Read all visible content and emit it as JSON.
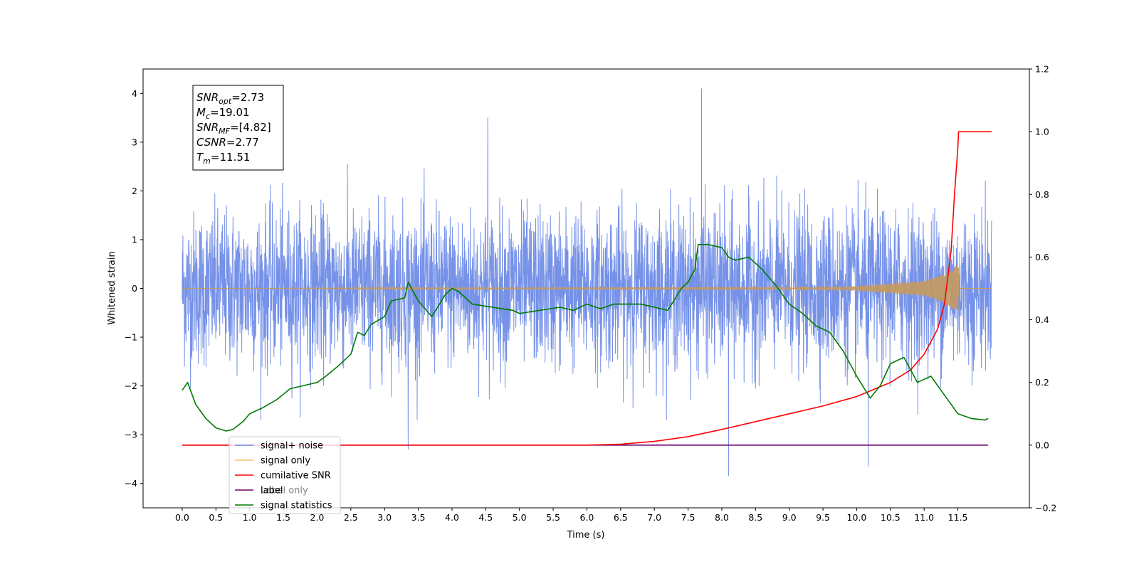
{
  "chart_data": {
    "type": "line",
    "xlabel": "Time (s)",
    "ylabel": "Whitened strain",
    "xlim": [
      -0.58,
      12.56
    ],
    "ylim": [
      -4.5,
      4.5
    ],
    "y2lim": [
      -0.2,
      1.2
    ],
    "x_ticks": [
      0.0,
      0.5,
      1.0,
      1.5,
      2.0,
      2.5,
      3.0,
      3.5,
      4.0,
      4.5,
      5.0,
      5.5,
      6.0,
      6.5,
      7.0,
      7.5,
      8.0,
      8.5,
      9.0,
      9.5,
      10.0,
      10.5,
      11.0,
      11.5
    ],
    "x_tick_labels": [
      "0.0",
      "0.5",
      "1.0",
      "1.5",
      "2.0",
      "2.5",
      "3.0",
      "3.5",
      "4.0",
      "4.5",
      "5.0",
      "5.5",
      "6.0",
      "6.5",
      "7.0",
      "7.5",
      "8.0",
      "8.5",
      "9.0",
      "9.5",
      "10.0",
      "10.5",
      "11.0",
      "11.5"
    ],
    "y_ticks": [
      -4,
      -3,
      -2,
      -1,
      0,
      1,
      2,
      3,
      4
    ],
    "y_tick_labels": [
      "−4",
      "−3",
      "−2",
      "−1",
      "0",
      "1",
      "2",
      "3",
      "4"
    ],
    "y2_ticks": [
      -0.2,
      0.0,
      0.2,
      0.4,
      0.6,
      0.8,
      1.0,
      1.2
    ],
    "y2_tick_labels": [
      "−0.2",
      "0.0",
      "0.2",
      "0.4",
      "0.6",
      "0.8",
      "1.0",
      "1.2"
    ],
    "grid": false,
    "legend_position": "bottom-left",
    "series": [
      {
        "name": "signal+ noise",
        "axis": "left",
        "color": "#6a89e6",
        "x_range": [
          0.0,
          12.0
        ],
        "envelope_typical": [
          -1.7,
          1.7
        ],
        "spikes": [
          [
            4.53,
            3.5
          ],
          [
            7.7,
            4.1
          ],
          [
            8.1,
            -3.85
          ],
          [
            10.17,
            -3.65
          ],
          [
            3.35,
            -3.3
          ]
        ]
      },
      {
        "name": "signal only",
        "axis": "left",
        "color": "#f5c069",
        "x_range": [
          0.0,
          11.51
        ],
        "envelope_peak": [
          [
            0.0,
            0.0
          ],
          [
            9.0,
            0.03
          ],
          [
            10.0,
            0.05
          ],
          [
            11.0,
            0.15
          ],
          [
            11.3,
            0.3
          ],
          [
            11.51,
            0.5
          ]
        ]
      },
      {
        "name": "cumilative SNR",
        "axis": "right",
        "color": "#ff0000",
        "x": [
          0.0,
          4.0,
          6.0,
          6.5,
          7.0,
          7.5,
          8.0,
          8.5,
          9.0,
          9.5,
          10.0,
          10.5,
          10.8,
          11.0,
          11.2,
          11.3,
          11.4,
          11.45,
          11.5,
          11.51,
          12.0
        ],
        "y": [
          0.0,
          0.0,
          0.0,
          0.003,
          0.012,
          0.027,
          0.05,
          0.075,
          0.1,
          0.125,
          0.155,
          0.2,
          0.24,
          0.29,
          0.37,
          0.45,
          0.62,
          0.8,
          0.95,
          1.0,
          1.0
        ]
      },
      {
        "name": "label",
        "axis": "right",
        "color": "#6b006b",
        "x": [
          0.0,
          11.95
        ],
        "y": [
          0.0,
          0.0
        ]
      },
      {
        "name": "Label only",
        "axis": "right",
        "color": "#6b006b",
        "hidden": true
      },
      {
        "name": "signal statistics",
        "axis": "right",
        "color": "#007a00",
        "x": [
          0.0,
          0.08,
          0.2,
          0.35,
          0.5,
          0.65,
          0.75,
          0.9,
          1.0,
          1.2,
          1.4,
          1.6,
          1.8,
          2.0,
          2.1,
          2.3,
          2.5,
          2.6,
          2.7,
          2.8,
          3.0,
          3.1,
          3.3,
          3.35,
          3.5,
          3.7,
          3.9,
          4.0,
          4.1,
          4.3,
          4.6,
          4.9,
          5.0,
          5.3,
          5.6,
          5.8,
          6.0,
          6.2,
          6.4,
          6.6,
          6.8,
          7.0,
          7.2,
          7.4,
          7.5,
          7.6,
          7.65,
          7.8,
          8.0,
          8.1,
          8.2,
          8.4,
          8.6,
          8.8,
          9.0,
          9.2,
          9.4,
          9.6,
          9.8,
          10.0,
          10.2,
          10.35,
          10.5,
          10.7,
          10.9,
          11.1,
          11.3,
          11.5,
          11.7,
          11.9,
          11.95
        ],
        "y": [
          0.175,
          0.2,
          0.13,
          0.085,
          0.055,
          0.045,
          0.05,
          0.075,
          0.1,
          0.12,
          0.145,
          0.18,
          0.19,
          0.2,
          0.215,
          0.25,
          0.29,
          0.36,
          0.35,
          0.385,
          0.41,
          0.46,
          0.47,
          0.52,
          0.46,
          0.41,
          0.48,
          0.5,
          0.49,
          0.45,
          0.44,
          0.43,
          0.42,
          0.43,
          0.44,
          0.43,
          0.45,
          0.435,
          0.45,
          0.45,
          0.45,
          0.44,
          0.43,
          0.5,
          0.52,
          0.56,
          0.64,
          0.64,
          0.63,
          0.6,
          0.59,
          0.6,
          0.56,
          0.51,
          0.45,
          0.42,
          0.38,
          0.36,
          0.3,
          0.22,
          0.15,
          0.19,
          0.26,
          0.28,
          0.2,
          0.22,
          0.16,
          0.1,
          0.085,
          0.08,
          0.085
        ]
      }
    ],
    "annotation": {
      "lines": [
        {
          "main": "SNR",
          "sub": "opt",
          "rest": "=2.73"
        },
        {
          "main": "M",
          "sub": "c",
          "rest": "=19.01"
        },
        {
          "main": "SNR",
          "sub": "MF",
          "rest": "=[4.82]"
        },
        {
          "main": "CSNR",
          "sub": "",
          "rest": "=2.77"
        },
        {
          "main": "T",
          "sub": "m",
          "rest": "=11.51"
        }
      ]
    }
  }
}
